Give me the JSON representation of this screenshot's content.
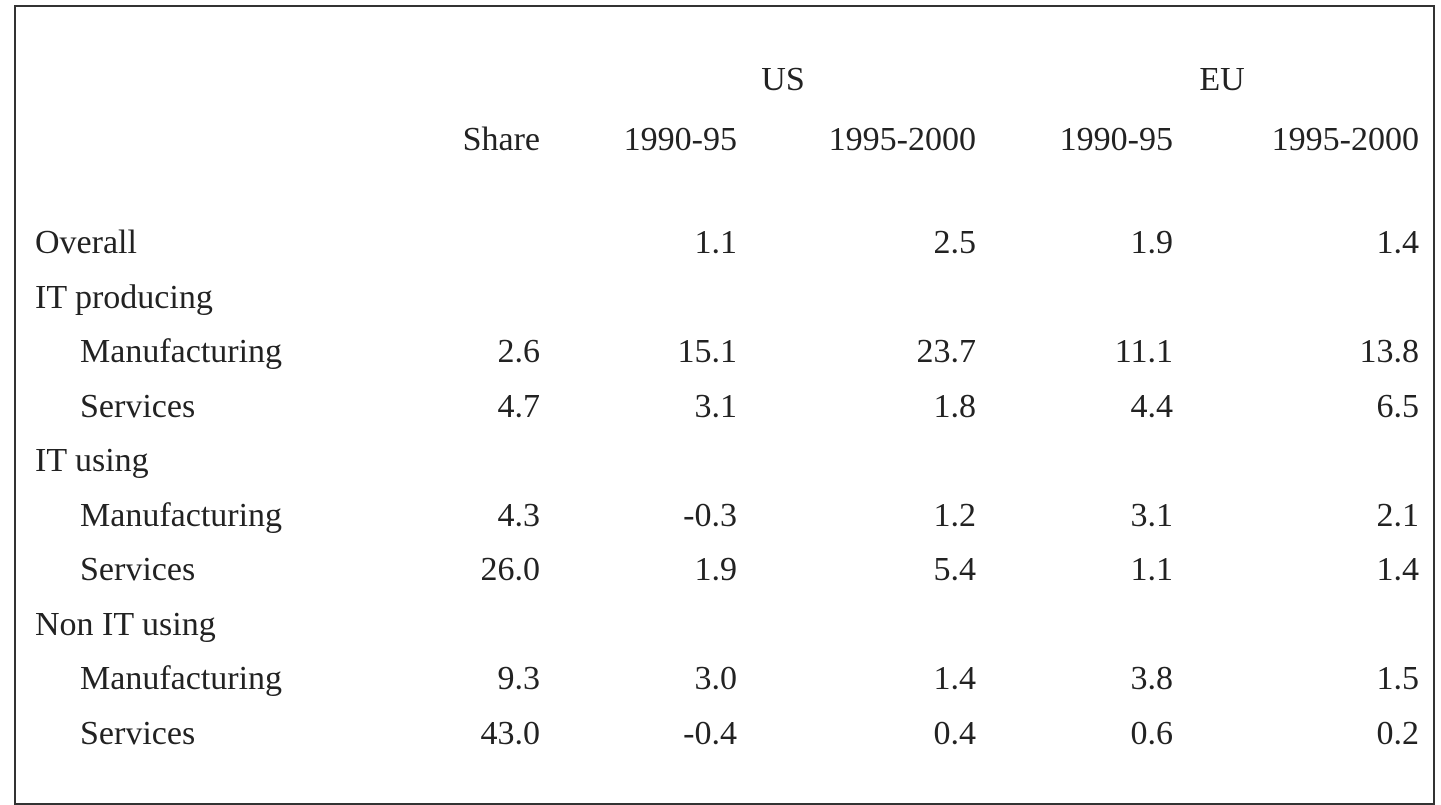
{
  "table": {
    "groups": [
      {
        "label": "US"
      },
      {
        "label": "EU"
      }
    ],
    "columns": [
      "Share",
      "1990-95",
      "1995-2000",
      "1990-95",
      "1995-2000"
    ],
    "rows": [
      {
        "label": "Overall",
        "cells": [
          null,
          "1.1",
          "2.5",
          "1.9",
          "1.4"
        ]
      },
      {
        "label": "IT producing"
      },
      {
        "label": "Manufacturing",
        "indent": true,
        "cells": [
          "2.6",
          "15.1",
          "23.7",
          "11.1",
          "13.8"
        ]
      },
      {
        "label": "Services",
        "indent": true,
        "cells": [
          "4.7",
          "3.1",
          "1.8",
          "4.4",
          "6.5"
        ]
      },
      {
        "label": "IT using"
      },
      {
        "label": "Manufacturing",
        "indent": true,
        "cells": [
          "4.3",
          "-0.3",
          "1.2",
          "3.1",
          "2.1"
        ]
      },
      {
        "label": "Services",
        "indent": true,
        "cells": [
          "26.0",
          "1.9",
          "5.4",
          "1.1",
          "1.4"
        ]
      },
      {
        "label": "Non IT using"
      },
      {
        "label": "Manufacturing",
        "indent": true,
        "cells": [
          "9.3",
          "3.0",
          "1.4",
          "3.8",
          "1.5"
        ]
      },
      {
        "label": "Services",
        "indent": true,
        "cells": [
          "43.0",
          "-0.4",
          "0.4",
          "0.6",
          "0.2"
        ]
      }
    ]
  }
}
